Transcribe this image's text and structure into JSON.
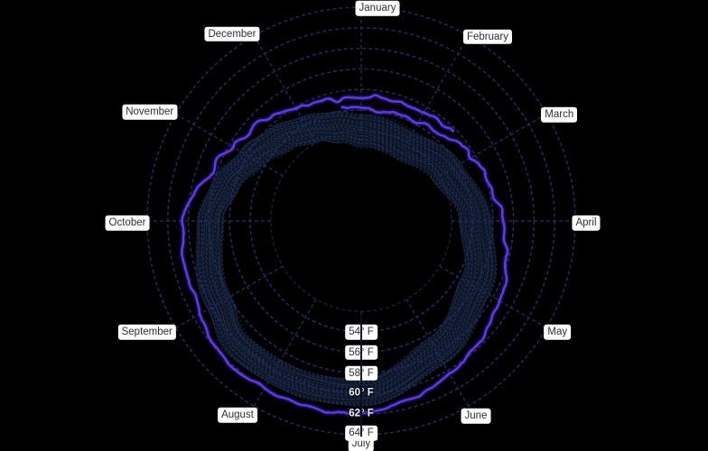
{
  "page": {
    "background": "#000000"
  },
  "chart_data": {
    "type": "line",
    "subtype": "radial-polar-temperature-wheel",
    "months": [
      "January",
      "February",
      "March",
      "April",
      "May",
      "June",
      "July",
      "August",
      "September",
      "October",
      "November",
      "December"
    ],
    "radial_axis": {
      "unit": "°F",
      "tick_values": [
        54,
        56,
        58,
        60,
        62,
        64
      ],
      "tick_label_suffix": "° F",
      "inverted_label_values": [
        60,
        62
      ],
      "unlabeled_inner_ring_value": 52,
      "range_f": [
        52,
        64
      ]
    },
    "monthly_line_values_f": {
      "January": 54.1,
      "February": 54.2,
      "March": 55.6,
      "April": 56.9,
      "May": 58.8,
      "June": 60.4,
      "July": 61.9,
      "August": 62.0,
      "September": 61.1,
      "October": 60.4,
      "November": 57.7,
      "December": 55.9
    },
    "series": [
      {
        "name": "recent-temperature-line",
        "kind": "line",
        "color": "#5d38f0",
        "anchors_deg_f": [
          [
            -10,
            54.4
          ],
          [
            0,
            54.1
          ],
          [
            15,
            54.0
          ],
          [
            30,
            54.2
          ],
          [
            45,
            54.8
          ],
          [
            60,
            55.6
          ],
          [
            75,
            56.2
          ],
          [
            90,
            56.9
          ],
          [
            105,
            57.8
          ],
          [
            120,
            58.8
          ],
          [
            135,
            59.6
          ],
          [
            150,
            60.4
          ],
          [
            165,
            61.2
          ],
          [
            180,
            61.9
          ],
          [
            195,
            62.0
          ],
          [
            210,
            62.0
          ],
          [
            222,
            62.3
          ],
          [
            232,
            61.8
          ],
          [
            240,
            61.1
          ],
          [
            255,
            60.8
          ],
          [
            270,
            60.4
          ],
          [
            280,
            59.6
          ],
          [
            290,
            58.4
          ],
          [
            300,
            57.7
          ],
          [
            310,
            57.2
          ],
          [
            320,
            56.7
          ],
          [
            330,
            55.9
          ],
          [
            340,
            55.5
          ],
          [
            350,
            55.3
          ],
          [
            360,
            55.1
          ],
          [
            372,
            55.15
          ],
          [
            385,
            55.3
          ],
          [
            398,
            55.35
          ],
          [
            405,
            55.45
          ]
        ]
      },
      {
        "name": "historical-range-band",
        "kind": "band",
        "fill": "#0d1626",
        "hatch_color": "#2e4070",
        "hatch_dark": "#000000",
        "outer_anchors_deg_f": [
          [
            0,
            53.6
          ],
          [
            30,
            53.3
          ],
          [
            60,
            54.4
          ],
          [
            90,
            55.9
          ],
          [
            120,
            57.6
          ],
          [
            150,
            59.3
          ],
          [
            180,
            61.2
          ],
          [
            210,
            61.3
          ],
          [
            225,
            61.5
          ],
          [
            240,
            60.4
          ],
          [
            270,
            59.2
          ],
          [
            285,
            58.2
          ],
          [
            300,
            56.8
          ],
          [
            315,
            55.9
          ],
          [
            330,
            54.9
          ],
          [
            345,
            54.2
          ],
          [
            360,
            53.6
          ]
        ],
        "inner_anchors_deg_f": [
          [
            0,
            50.4
          ],
          [
            30,
            50.2
          ],
          [
            60,
            51.2
          ],
          [
            90,
            52.7
          ],
          [
            120,
            54.4
          ],
          [
            150,
            56.3
          ],
          [
            180,
            58.6
          ],
          [
            210,
            58.8
          ],
          [
            225,
            58.9
          ],
          [
            240,
            57.8
          ],
          [
            270,
            56.6
          ],
          [
            285,
            55.5
          ],
          [
            300,
            54.1
          ],
          [
            315,
            53.0
          ],
          [
            330,
            52.0
          ],
          [
            345,
            51.1
          ],
          [
            360,
            50.4
          ]
        ]
      }
    ],
    "grid": {
      "color": "#1d2b56"
    },
    "labels": {
      "chip_bg": "#ffffff",
      "chip_text": "#2e3039",
      "inverted_text": "#eef1f7"
    },
    "legend": {
      "shown": false
    }
  }
}
